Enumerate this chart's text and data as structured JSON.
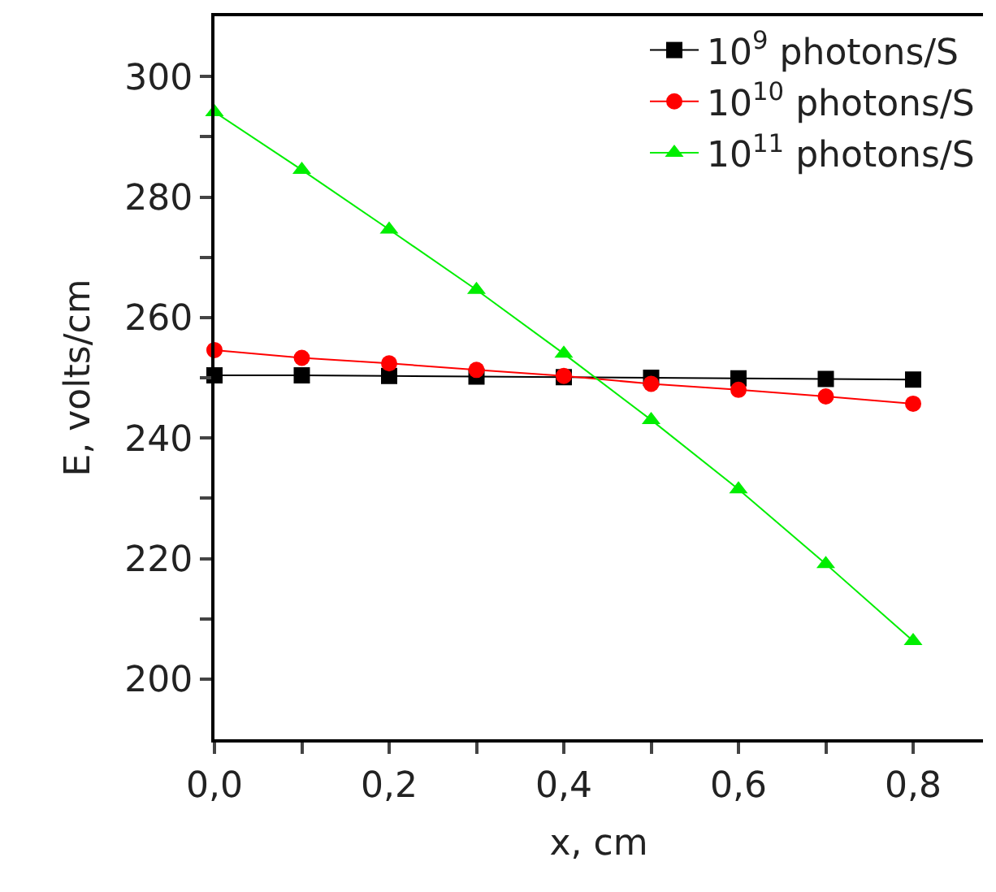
{
  "chart_data": {
    "type": "line",
    "xlabel": "x, cm",
    "ylabel": "E, volts/cm",
    "x": [
      0,
      0.1,
      0.2,
      0.3,
      0.4,
      0.5,
      0.6,
      0.7,
      0.8
    ],
    "series": [
      {
        "name": "10$^{9}$ photons/S",
        "color": "#000000",
        "marker": "square",
        "values": [
          250.4,
          250.4,
          250.3,
          250.2,
          250.1,
          250.0,
          249.9,
          249.8,
          249.7
        ]
      },
      {
        "name": "10$^{10}$ photons/S",
        "color": "#ff0000",
        "marker": "circle",
        "values": [
          254.6,
          253.3,
          252.4,
          251.3,
          250.3,
          249.0,
          248.0,
          246.9,
          245.7
        ]
      },
      {
        "name": "10$^{11}$ photons/S",
        "color": "#00ee00",
        "marker": "triangle",
        "values": [
          294.1,
          284.5,
          274.6,
          264.6,
          254.0,
          243.0,
          231.5,
          219.1,
          206.3
        ]
      }
    ],
    "xlim": [
      0,
      0.88
    ],
    "ylim": [
      190,
      310
    ],
    "xticks": [
      {
        "value": 0,
        "label": "0,0"
      },
      {
        "value": 0.1,
        "label": null
      },
      {
        "value": 0.2,
        "label": "0,2"
      },
      {
        "value": 0.3,
        "label": null
      },
      {
        "value": 0.4,
        "label": "0,4"
      },
      {
        "value": 0.5,
        "label": null
      },
      {
        "value": 0.6,
        "label": "0,6"
      },
      {
        "value": 0.7,
        "label": null
      },
      {
        "value": 0.8,
        "label": "0,8"
      }
    ],
    "yticks": [
      200,
      {
        "value": 210,
        "label": null
      },
      220,
      {
        "value": 230,
        "label": null
      },
      240,
      {
        "value": 250,
        "label": null
      },
      260,
      {
        "value": 270,
        "label": null
      },
      280,
      {
        "value": 290,
        "label": null
      },
      300
    ],
    "legend": "top right",
    "line_style": "solid"
  }
}
